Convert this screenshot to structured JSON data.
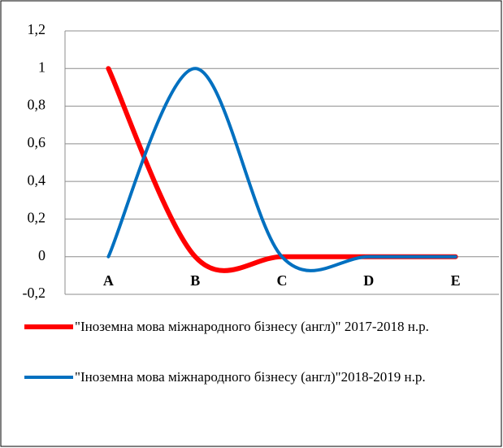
{
  "chart_data": {
    "type": "line",
    "smooth": true,
    "categories": [
      "A",
      "B",
      "C",
      "D",
      "E"
    ],
    "series": [
      {
        "name": "\"Іноземна мова міжнародного бізнесу (англ)\" 2017-2018 н.р.",
        "color": "#ff0000",
        "values": [
          1,
          0,
          0,
          0,
          0
        ]
      },
      {
        "name": "\"Іноземна мова міжнародного бізнесу (англ)\"2018-2019 н.р.",
        "color": "#0070c0",
        "values": [
          0,
          1,
          0,
          0,
          0
        ]
      }
    ],
    "ylim": [
      -0.2,
      1.2
    ],
    "yticks": [
      {
        "value": -0.2,
        "label": "-0,2"
      },
      0,
      {
        "value": 0.2,
        "label": "0,2"
      },
      {
        "value": 0.4,
        "label": "0,4"
      },
      {
        "value": 0.6,
        "label": "0,6"
      },
      {
        "value": 0.8,
        "label": "0,8"
      },
      1,
      {
        "value": 1.2,
        "label": "1,2"
      }
    ],
    "grid": true,
    "legend": "bottom"
  }
}
